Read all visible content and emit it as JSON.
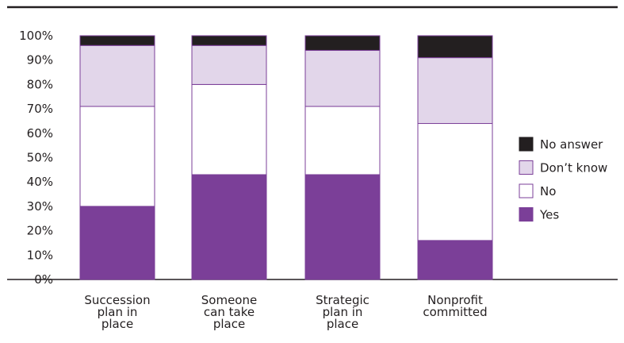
{
  "chart_data": {
    "type": "bar",
    "stacked": true,
    "percent": true,
    "categories": [
      [
        "Succession",
        "plan in",
        "place"
      ],
      [
        "Someone",
        "can take",
        "place"
      ],
      [
        "Strategic",
        "plan in",
        "place"
      ],
      [
        "Nonprofit",
        "committed"
      ]
    ],
    "series": [
      {
        "name": "Yes",
        "color": "#7b3f98",
        "values": [
          30,
          43,
          43,
          16
        ]
      },
      {
        "name": "No",
        "color": "#ffffff",
        "values": [
          41,
          37,
          28,
          48
        ]
      },
      {
        "name": "Don’t know",
        "color": "#e2d6ea",
        "values": [
          25,
          16,
          23,
          27
        ]
      },
      {
        "name": "No answer",
        "color": "#231f20",
        "values": [
          4,
          4,
          6,
          9
        ]
      }
    ],
    "legend_order": [
      "No answer",
      "Don’t know",
      "No",
      "Yes"
    ],
    "legend_position": "right",
    "ylim": [
      0,
      100
    ],
    "yticks": [
      "0%",
      "10%",
      "20%",
      "30%",
      "40%",
      "50%",
      "60%",
      "70%",
      "80%",
      "90%",
      "100%"
    ],
    "ytick_values": [
      0,
      10,
      20,
      30,
      40,
      50,
      60,
      70,
      80,
      90,
      100
    ],
    "outline_color": "#7b3f98",
    "grid": false,
    "title": "",
    "xlabel": "",
    "ylabel": ""
  }
}
